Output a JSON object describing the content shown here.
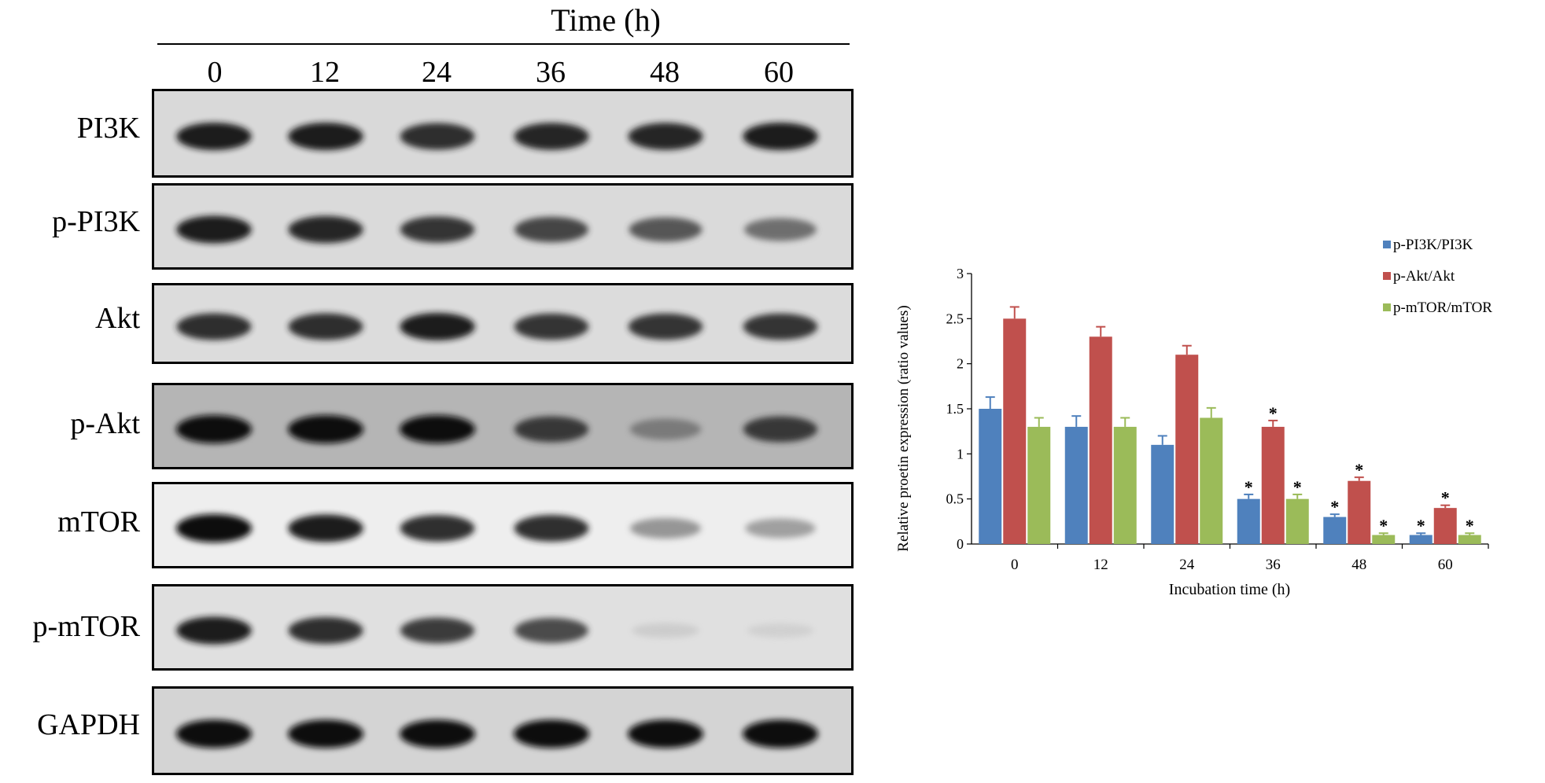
{
  "blot": {
    "time_header": "Time (h)",
    "lanes": [
      "0",
      "12",
      "24",
      "36",
      "48",
      "60"
    ],
    "rows": [
      {
        "label": "PI3K",
        "band_intensity": [
          0.95,
          0.95,
          0.9,
          0.92,
          0.92,
          0.95
        ],
        "background": "#d9d9d9"
      },
      {
        "label": "p-PI3K",
        "band_intensity": [
          0.95,
          0.92,
          0.88,
          0.82,
          0.75,
          0.65
        ],
        "background": "#dadada"
      },
      {
        "label": "Akt",
        "band_intensity": [
          0.9,
          0.9,
          0.95,
          0.88,
          0.88,
          0.88
        ],
        "background": "#dcdcdc"
      },
      {
        "label": "p-Akt",
        "band_intensity": [
          1.0,
          1.0,
          1.0,
          0.85,
          0.55,
          0.85
        ],
        "background": "#b5b5b5"
      },
      {
        "label": "mTOR",
        "band_intensity": [
          1.0,
          0.95,
          0.9,
          0.9,
          0.5,
          0.45
        ],
        "background": "#eeeeee"
      },
      {
        "label": "p-mTOR",
        "band_intensity": [
          0.95,
          0.9,
          0.85,
          0.8,
          0.12,
          0.08
        ],
        "background": "#e0e0e0"
      },
      {
        "label": "GAPDH",
        "band_intensity": [
          1.0,
          1.0,
          1.0,
          1.0,
          1.0,
          1.0
        ],
        "background": "#d4d4d4"
      }
    ]
  },
  "chart_data": {
    "type": "bar",
    "categories": [
      "0",
      "12",
      "24",
      "36",
      "48",
      "60"
    ],
    "xlabel": "Incubation time (h)",
    "ylabel": "Relative proetin expression (ratio values)",
    "ylim": [
      0,
      3
    ],
    "yticks": [
      "0",
      "0.5",
      "1",
      "1.5",
      "2",
      "2.5",
      "3"
    ],
    "legend_position": "top-right",
    "significance_marker": "*",
    "series": [
      {
        "name": "p-PI3K/PI3K",
        "color": "#4f81bd",
        "values": [
          1.5,
          1.3,
          1.1,
          0.5,
          0.3,
          0.1
        ],
        "errors": [
          0.13,
          0.12,
          0.1,
          0.05,
          0.03,
          0.02
        ],
        "significant": [
          false,
          false,
          false,
          true,
          true,
          true
        ]
      },
      {
        "name": "p-Akt/Akt",
        "color": "#c0504d",
        "values": [
          2.5,
          2.3,
          2.1,
          1.3,
          0.7,
          0.4
        ],
        "errors": [
          0.13,
          0.11,
          0.1,
          0.07,
          0.04,
          0.03
        ],
        "significant": [
          false,
          false,
          false,
          true,
          true,
          true
        ]
      },
      {
        "name": "p-mTOR/mTOR",
        "color": "#9bbb59",
        "values": [
          1.3,
          1.3,
          1.4,
          0.5,
          0.1,
          0.1
        ],
        "errors": [
          0.1,
          0.1,
          0.11,
          0.05,
          0.02,
          0.02
        ],
        "significant": [
          false,
          false,
          false,
          true,
          true,
          true
        ]
      }
    ]
  }
}
